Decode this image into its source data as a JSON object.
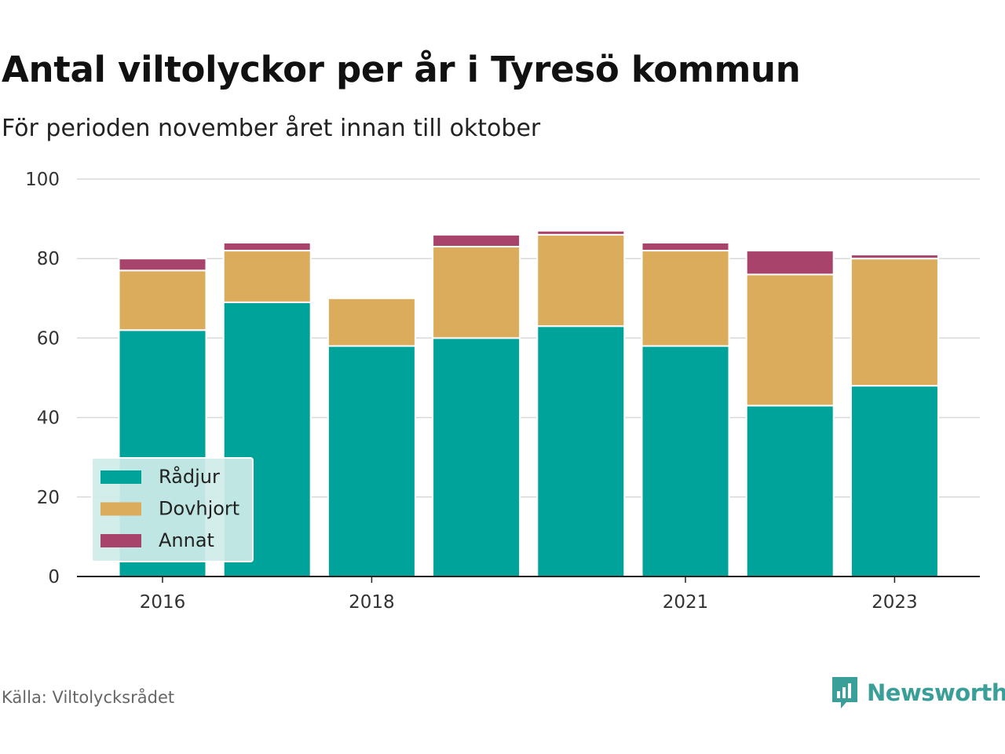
{
  "chart_data": {
    "type": "bar",
    "stacked": true,
    "title": "Antal viltolyckor per år i Tyresö kommun",
    "subtitle": "För perioden november året innan till oktober",
    "categories": [
      "2016",
      "2017",
      "2018",
      "2019",
      "2020",
      "2021",
      "2022",
      "2023"
    ],
    "x_tick_labels": [
      "2016",
      "2018",
      "2021",
      "2023"
    ],
    "series": [
      {
        "name": "Rådjur",
        "color": "#00a39a",
        "values": [
          62,
          69,
          58,
          60,
          63,
          58,
          43,
          48
        ]
      },
      {
        "name": "Dovhjort",
        "color": "#dbac5b",
        "values": [
          15,
          13,
          12,
          23,
          23,
          24,
          33,
          32
        ]
      },
      {
        "name": "Annat",
        "color": "#a8446b",
        "values": [
          3,
          2,
          0,
          3,
          1,
          2,
          6,
          1
        ]
      }
    ],
    "ylim": [
      0,
      100
    ],
    "y_ticks": [
      0,
      20,
      40,
      60,
      80,
      100
    ],
    "grid": true,
    "legend_position": "bottom-left"
  },
  "footer": {
    "source": "Källa: Viltolycksrådet",
    "brand": "Newsworthy",
    "brand_icon": "bar-chart-speech-bubble-icon",
    "brand_color": "#3a9f98"
  }
}
